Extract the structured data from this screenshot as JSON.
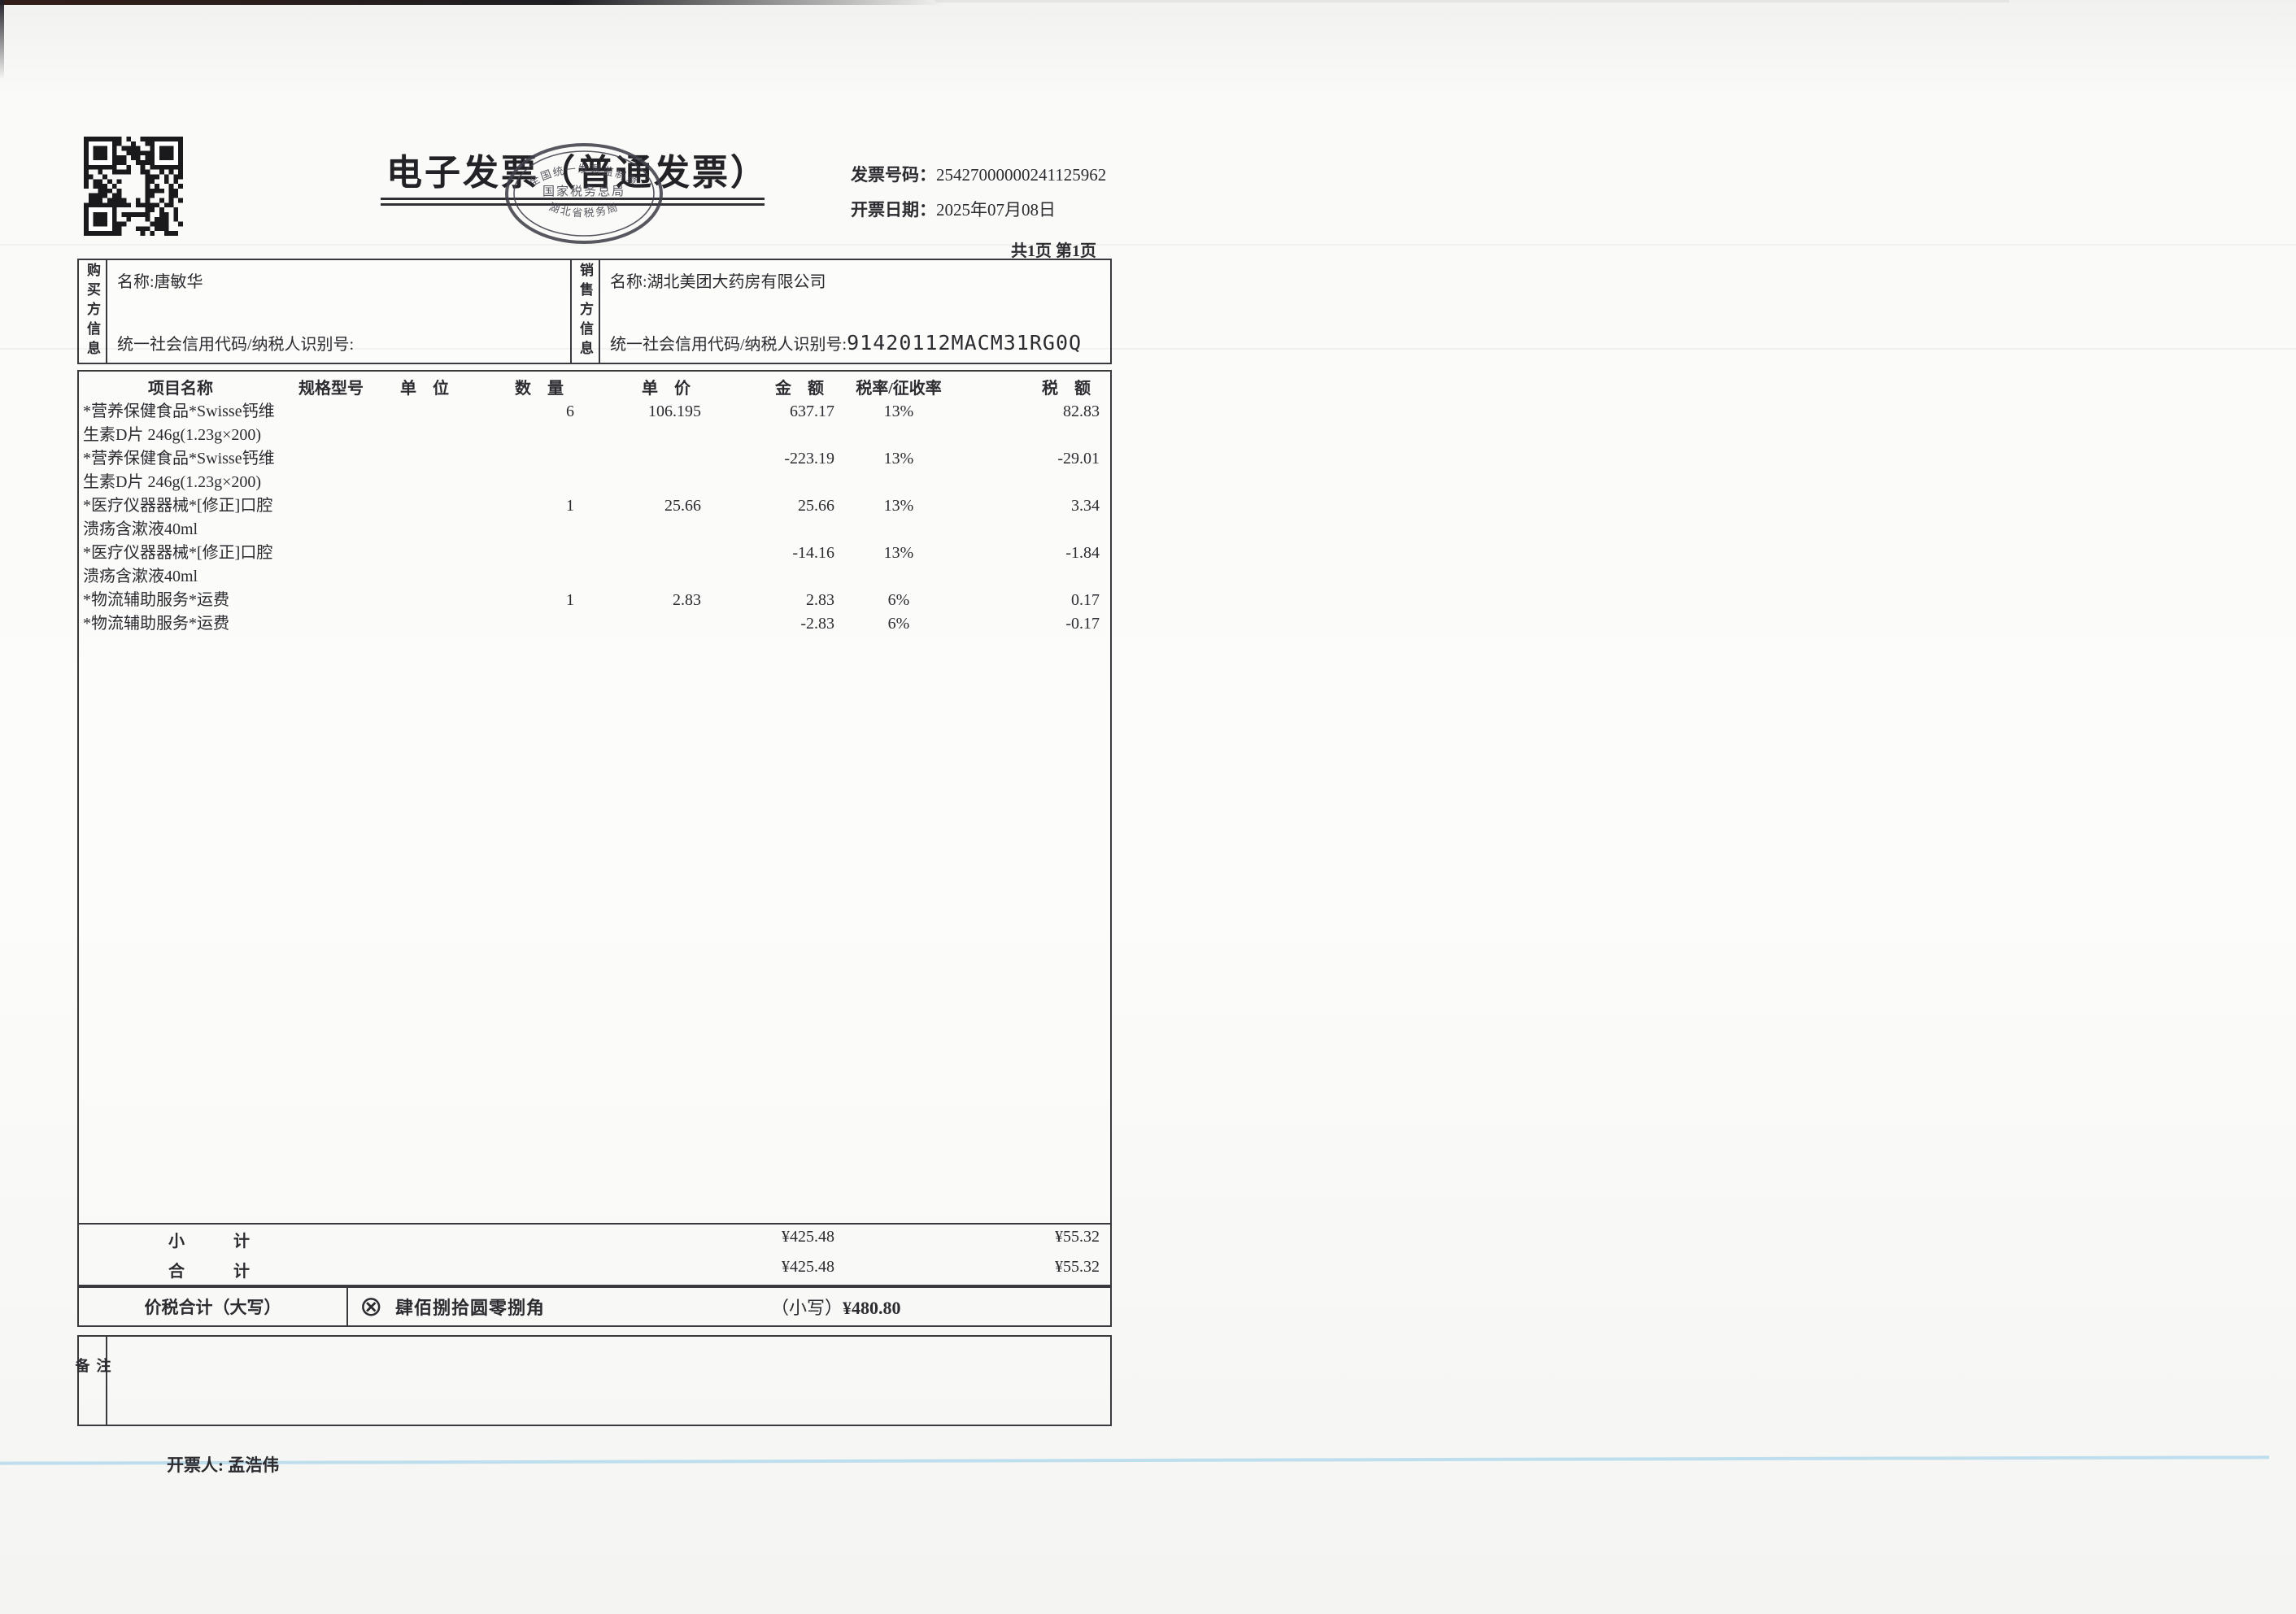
{
  "colors": {
    "ink": "#2b2b30",
    "stamp": "#41414c",
    "scan_blue_line": "#b4d9ec",
    "paper": "#fcfcfa"
  },
  "header": {
    "title": "电子发票（普通发票）",
    "invoice_no_label": "发票号码：",
    "invoice_no": "25427000000241125962",
    "date_label": "开票日期：",
    "date": "2025年07月08日",
    "page_info": "共1页 第1页",
    "stamp": {
      "arc_text": "全国统一发票监制章",
      "center_text": "国家税务总局",
      "bottom_text": "湖北省税务局"
    }
  },
  "parties": {
    "buyer_panel_label": "购买方信息",
    "seller_panel_label": "销售方信息",
    "name_label": "名称:",
    "tax_id_label": "统一社会信用代码/纳税人识别号:",
    "buyer_name": "唐敏华",
    "buyer_tax_id": "",
    "seller_name": "湖北美团大药房有限公司",
    "seller_tax_id": "91420112MACM31RG0Q"
  },
  "items_table": {
    "headers": {
      "name": "项目名称",
      "spec": "规格型号",
      "unit": "单　位",
      "qty": "数　量",
      "price": "单　价",
      "amount": "金　额",
      "rate": "税率/征收率",
      "tax": "税　额"
    },
    "rows": [
      {
        "name": "*营养保健食品*Swisse钙维生素D片  246g(1.23g×200)",
        "spec": "",
        "unit": "",
        "qty": "6",
        "price": "106.195",
        "amount": "637.17",
        "rate": "13%",
        "tax": "82.83"
      },
      {
        "name": "*营养保健食品*Swisse钙维生素D片  246g(1.23g×200)",
        "spec": "",
        "unit": "",
        "qty": "",
        "price": "",
        "amount": "-223.19",
        "rate": "13%",
        "tax": "-29.01"
      },
      {
        "name": "*医疗仪器器械*[修正]口腔溃疡含漱液40ml",
        "spec": "",
        "unit": "",
        "qty": "1",
        "price": "25.66",
        "amount": "25.66",
        "rate": "13%",
        "tax": "3.34"
      },
      {
        "name": "*医疗仪器器械*[修正]口腔溃疡含漱液40ml",
        "spec": "",
        "unit": "",
        "qty": "",
        "price": "",
        "amount": "-14.16",
        "rate": "13%",
        "tax": "-1.84"
      },
      {
        "name": "*物流辅助服务*运费",
        "spec": "",
        "unit": "",
        "qty": "1",
        "price": "2.83",
        "amount": "2.83",
        "rate": "6%",
        "tax": "0.17"
      },
      {
        "name": "*物流辅助服务*运费",
        "spec": "",
        "unit": "",
        "qty": "",
        "price": "",
        "amount": "-2.83",
        "rate": "6%",
        "tax": "-0.17"
      }
    ],
    "subtotal_label": "小　　　计",
    "subtotal_amount": "¥425.48",
    "subtotal_tax": "¥55.32",
    "total_label": "合　　　计",
    "total_amount": "¥425.48",
    "total_tax": "¥55.32",
    "grand_label": "价税合计（大写）",
    "grand_symbol": "⊗",
    "grand_words": "肆佰捌拾圆零捌角",
    "grand_small_label": "（小写）",
    "grand_value": "¥480.80"
  },
  "footer": {
    "remark_label": "备注",
    "remark_content": "",
    "issuer_label": "开票人:",
    "issuer_name": "孟浩伟"
  }
}
